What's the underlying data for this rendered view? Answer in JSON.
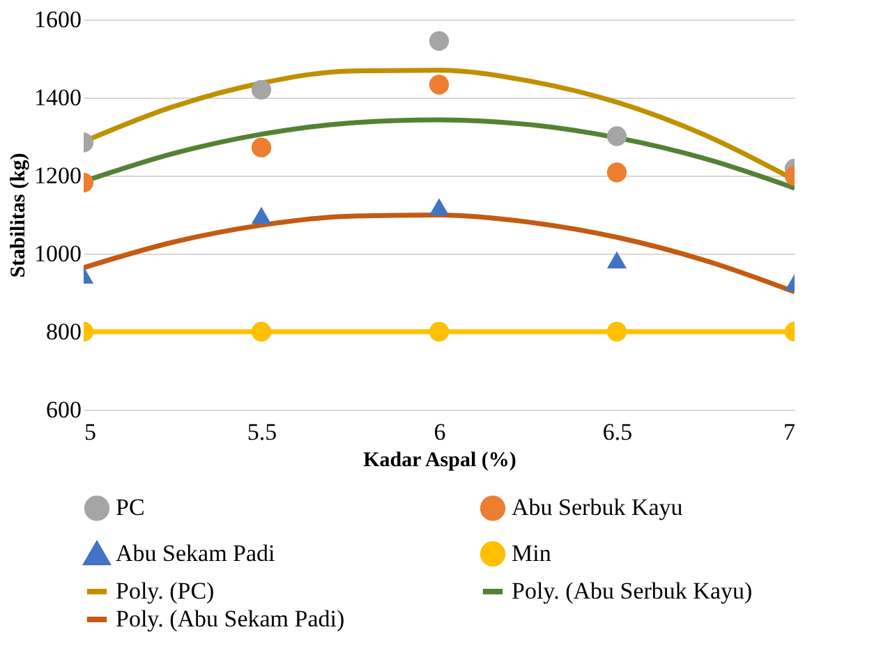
{
  "chart_data": {
    "type": "scatter",
    "xlabel": "Kadar Aspal (%)",
    "ylabel": "Stabilitas (kg)",
    "x": [
      5,
      5.5,
      6,
      6.5,
      7
    ],
    "xlim": [
      5,
      7
    ],
    "xticks": [
      5,
      5.5,
      6,
      6.5,
      7
    ],
    "ylim": [
      600,
      1600
    ],
    "yticks": [
      600,
      800,
      1000,
      1200,
      1400,
      1600
    ],
    "grid": "y",
    "legend": "bottom",
    "series": [
      {
        "name": "PC",
        "marker": "circle",
        "color": "#a5a5a5",
        "values": [
          1285,
          1420,
          1545,
          1301,
          1218
        ]
      },
      {
        "name": "Abu Serbuk Kayu",
        "marker": "circle",
        "color": "#ed7d31",
        "values": [
          1182,
          1272,
          1433,
          1208,
          1199
        ]
      },
      {
        "name": "Abu Sekam Padi",
        "marker": "triangle",
        "color": "#4472c4",
        "values": [
          945,
          1098,
          1120,
          984,
          926
        ]
      },
      {
        "name": "Min",
        "type": "line",
        "marker": "circle",
        "color": "#ffc000",
        "values": [
          800,
          800,
          800,
          800,
          800
        ]
      },
      {
        "name": "Poly. (PC)",
        "type": "line",
        "marker": "none",
        "color": "#bf9000",
        "x": [
          5,
          5.25,
          5.5,
          5.75,
          6,
          6.25,
          6.5,
          6.75,
          7
        ],
        "values": [
          1287,
          1376,
          1437,
          1468,
          1470,
          1443,
          1388,
          1303,
          1189
        ]
      },
      {
        "name": "Poly. (Abu Serbuk Kayu)",
        "type": "line",
        "marker": "none",
        "color": "#548235",
        "x": [
          5,
          5.25,
          5.5,
          5.75,
          6,
          6.25,
          6.5,
          6.75,
          7
        ],
        "values": [
          1185,
          1256,
          1306,
          1335,
          1343,
          1331,
          1297,
          1243,
          1168
        ]
      },
      {
        "name": "Poly. (Abu Sekam Padi)",
        "type": "line",
        "marker": "none",
        "color": "#c55a11",
        "x": [
          5,
          5.25,
          5.5,
          5.75,
          6,
          6.25,
          6.5,
          6.75,
          7
        ],
        "values": [
          964,
          1029,
          1073,
          1096,
          1099,
          1081,
          1042,
          982,
          902
        ]
      }
    ]
  }
}
